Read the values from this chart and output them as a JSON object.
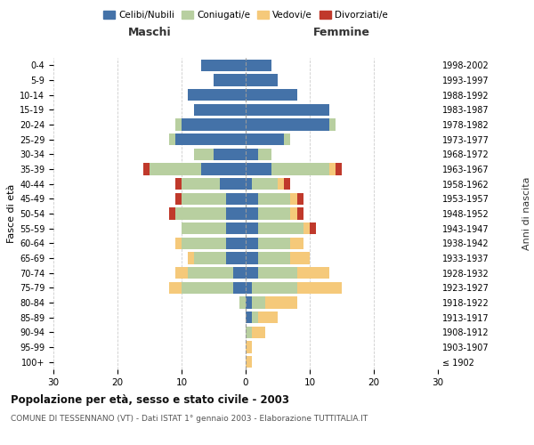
{
  "age_groups": [
    "100+",
    "95-99",
    "90-94",
    "85-89",
    "80-84",
    "75-79",
    "70-74",
    "65-69",
    "60-64",
    "55-59",
    "50-54",
    "45-49",
    "40-44",
    "35-39",
    "30-34",
    "25-29",
    "20-24",
    "15-19",
    "10-14",
    "5-9",
    "0-4"
  ],
  "birth_years": [
    "≤ 1902",
    "1903-1907",
    "1908-1912",
    "1913-1917",
    "1918-1922",
    "1923-1927",
    "1928-1932",
    "1933-1937",
    "1938-1942",
    "1943-1947",
    "1948-1952",
    "1953-1957",
    "1958-1962",
    "1963-1967",
    "1968-1972",
    "1973-1977",
    "1978-1982",
    "1983-1987",
    "1988-1992",
    "1993-1997",
    "1998-2002"
  ],
  "males": {
    "celibe": [
      0,
      0,
      0,
      0,
      0,
      2,
      2,
      3,
      3,
      3,
      3,
      3,
      4,
      7,
      5,
      11,
      10,
      8,
      9,
      5,
      7
    ],
    "coniugato": [
      0,
      0,
      0,
      0,
      1,
      8,
      7,
      5,
      7,
      7,
      8,
      7,
      6,
      8,
      3,
      1,
      1,
      0,
      0,
      0,
      0
    ],
    "vedovo": [
      0,
      0,
      0,
      0,
      0,
      2,
      2,
      1,
      1,
      0,
      0,
      0,
      0,
      0,
      0,
      0,
      0,
      0,
      0,
      0,
      0
    ],
    "divorziato": [
      0,
      0,
      0,
      0,
      0,
      0,
      0,
      0,
      0,
      0,
      1,
      1,
      1,
      1,
      0,
      0,
      0,
      0,
      0,
      0,
      0
    ]
  },
  "females": {
    "nubile": [
      0,
      0,
      0,
      1,
      1,
      1,
      2,
      2,
      2,
      2,
      2,
      2,
      1,
      4,
      2,
      6,
      13,
      13,
      8,
      5,
      4
    ],
    "coniugata": [
      0,
      0,
      1,
      1,
      2,
      7,
      6,
      5,
      5,
      7,
      5,
      5,
      4,
      9,
      2,
      1,
      1,
      0,
      0,
      0,
      0
    ],
    "vedova": [
      1,
      1,
      2,
      3,
      5,
      7,
      5,
      3,
      2,
      1,
      1,
      1,
      1,
      1,
      0,
      0,
      0,
      0,
      0,
      0,
      0
    ],
    "divorziata": [
      0,
      0,
      0,
      0,
      0,
      0,
      0,
      0,
      0,
      1,
      1,
      1,
      1,
      1,
      0,
      0,
      0,
      0,
      0,
      0,
      0
    ]
  },
  "colors": {
    "celibe": "#4472a8",
    "coniugato": "#b8cfa0",
    "vedovo": "#f5c97a",
    "divorziato": "#c0392b"
  },
  "xlim": 30,
  "title": "Popolazione per età, sesso e stato civile - 2003",
  "subtitle": "COMUNE DI TESSENNANO (VT) - Dati ISTAT 1° gennaio 2003 - Elaborazione TUTTITALIA.IT",
  "ylabel_left": "Fasce di età",
  "ylabel_right": "Anni di nascita",
  "xlabel_left": "Maschi",
  "xlabel_right": "Femmine",
  "legend_labels": [
    "Celibi/Nubili",
    "Coniugati/e",
    "Vedovi/e",
    "Divorziati/e"
  ],
  "bg_color": "#ffffff",
  "grid_color": "#cccccc"
}
